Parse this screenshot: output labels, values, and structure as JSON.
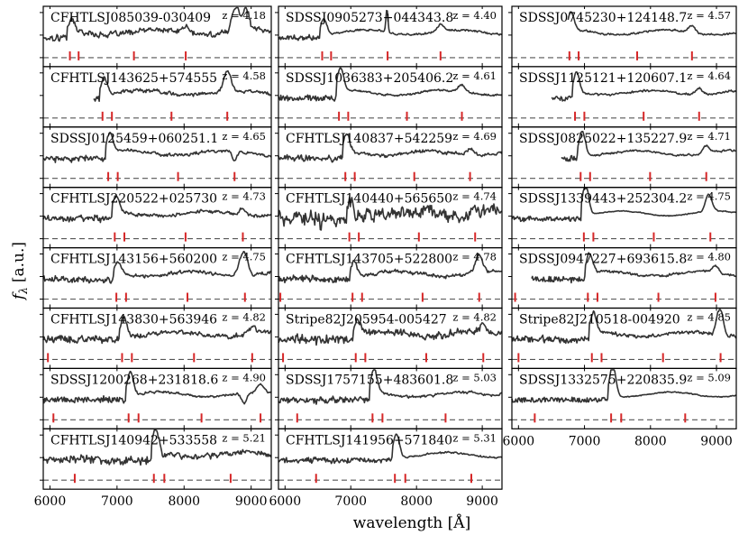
{
  "figure": {
    "ylabel": "f_λ [a.u.]",
    "ylabel_main": "f",
    "ylabel_sub": "λ",
    "ylabel_unit": "[a.u.]",
    "xlabel": "wavelength [Å]",
    "xticks": [
      "6000",
      "7000",
      "8000",
      "9000"
    ],
    "z_prefix": "z = ",
    "colors": {
      "spectrum": "#333333",
      "line_marker": "#d62728",
      "zero_line": "#555555",
      "axes": "#000000"
    }
  },
  "chart_data": {
    "type": "line",
    "title": "",
    "xlabel": "wavelength [Å]",
    "ylabel": "f_λ [a.u.]",
    "xlim": [
      5900,
      9300
    ],
    "xticks": [
      6000,
      7000,
      8000,
      9000
    ],
    "marker_rest_wavelengths_A": [
      1025.7,
      1215.7,
      1240.8,
      1400.0,
      1549.1,
      1908.7
    ],
    "panels": [
      {
        "name": "CFHTLSJ085039-030409",
        "z": "4.18",
        "zval": 4.18,
        "col": 0,
        "row": 0,
        "start": 5900,
        "lyamp": 0.55,
        "noise": 0.22,
        "peaks": [
          [
            8780,
            1.3,
            60
          ],
          [
            8930,
            1.1,
            40
          ]
        ]
      },
      {
        "name": "CFHTLSJ143625+574555",
        "z": "4.58",
        "zval": 4.58,
        "col": 0,
        "row": 1,
        "start": 6650,
        "lyamp": 0.9,
        "noise": 0.15,
        "peaks": [
          [
            8650,
            0.7,
            50
          ]
        ]
      },
      {
        "name": "SDSSJ0125459+060251.1",
        "z": "4.65",
        "zval": 4.65,
        "col": 0,
        "row": 2,
        "start": 5900,
        "lyamp": 1.0,
        "noise": 0.12,
        "peaks": [],
        "dips": [
          [
            8750,
            0.8,
            40
          ]
        ]
      },
      {
        "name": "CFHTLSJ220522+025730",
        "z": "4.73",
        "zval": 4.73,
        "col": 0,
        "row": 3,
        "start": 5900,
        "lyamp": 0.8,
        "noise": 0.14,
        "peaks": []
      },
      {
        "name": "CFHTLSJ143156+560200",
        "z": "4.75",
        "zval": 4.75,
        "col": 0,
        "row": 4,
        "start": 5900,
        "lyamp": 0.6,
        "noise": 0.14,
        "peaks": [
          [
            8880,
            0.9,
            60
          ]
        ]
      },
      {
        "name": "CFHTLSJ143830+563946",
        "z": "4.82",
        "zval": 4.82,
        "col": 0,
        "row": 5,
        "start": 5900,
        "lyamp": 1.0,
        "noise": 0.2,
        "peaks": []
      },
      {
        "name": "SDSSJ1200268+231818.6",
        "z": "4.90",
        "zval": 4.9,
        "col": 0,
        "row": 6,
        "start": 5900,
        "lyamp": 1.2,
        "noise": 0.1,
        "peaks": [],
        "dips": [
          [
            8900,
            0.5,
            40
          ]
        ]
      },
      {
        "name": "CFHTLSJ140942+533558",
        "z": "5.21",
        "zval": 5.21,
        "col": 0,
        "row": 7,
        "start": 5900,
        "lyamp": 1.3,
        "noise": 0.25,
        "peaks": []
      },
      {
        "name": "SDSSJ0905273+044343.8",
        "z": "4.40",
        "zval": 4.4,
        "col": 1,
        "row": 0,
        "start": 5900,
        "lyamp": 0.8,
        "noise": 0.08,
        "peaks": [
          [
            7550,
            1.2,
            15
          ]
        ]
      },
      {
        "name": "SDSSJ1036383+205406.2",
        "z": "4.61",
        "zval": 4.61,
        "col": 1,
        "row": 1,
        "start": 5900,
        "lyamp": 1.2,
        "noise": 0.08,
        "peaks": []
      },
      {
        "name": "CFHTLSJ140837+542259",
        "z": "4.69",
        "zval": 4.69,
        "col": 1,
        "row": 2,
        "start": 5900,
        "lyamp": 0.9,
        "noise": 0.14,
        "peaks": []
      },
      {
        "name": "CFHTLSJ140440+565650",
        "z": "4.74",
        "zval": 4.74,
        "col": 1,
        "row": 3,
        "start": 5900,
        "lyamp": 0.6,
        "noise": 0.55,
        "peaks": []
      },
      {
        "name": "CFHTLSJ143705+522800",
        "z": "4.78",
        "zval": 4.78,
        "col": 1,
        "row": 4,
        "start": 5900,
        "lyamp": 0.7,
        "noise": 0.15,
        "peaks": [
          [
            8950,
            0.6,
            50
          ]
        ]
      },
      {
        "name": "Stripe82J205954-005427",
        "z": "4.82",
        "zval": 4.82,
        "col": 1,
        "row": 5,
        "start": 5900,
        "lyamp": 0.8,
        "noise": 0.3,
        "peaks": []
      },
      {
        "name": "SDSSJ1757155+483601.8",
        "z": "5.03",
        "zval": 5.03,
        "col": 1,
        "row": 6,
        "start": 5900,
        "lyamp": 1.2,
        "noise": 0.1,
        "peaks": []
      },
      {
        "name": "CFHTLSJ141956+571840",
        "z": "5.31",
        "zval": 5.31,
        "col": 1,
        "row": 7,
        "start": 5900,
        "lyamp": 1.2,
        "noise": 0.08,
        "peaks": []
      },
      {
        "name": "SDSSJ0745230+124148.7",
        "z": "4.57",
        "zval": 4.57,
        "col": 2,
        "row": 0,
        "start": 6750,
        "lyamp": 0.9,
        "noise": 0.08,
        "peaks": []
      },
      {
        "name": "SDSSJ1125121+120607.1",
        "z": "4.64",
        "zval": 4.64,
        "col": 2,
        "row": 1,
        "start": 6500,
        "lyamp": 1.0,
        "noise": 0.1,
        "peaks": []
      },
      {
        "name": "SDSSJ0825022+135227.9",
        "z": "4.71",
        "zval": 4.71,
        "col": 2,
        "row": 2,
        "start": 6650,
        "lyamp": 1.2,
        "noise": 0.08,
        "peaks": []
      },
      {
        "name": "SDSSJ1339443+252304.2",
        "z": "4.75",
        "zval": 4.75,
        "col": 2,
        "row": 3,
        "start": 5900,
        "lyamp": 1.6,
        "noise": 0.04,
        "peaks": [
          [
            8870,
            0.6,
            40
          ]
        ]
      },
      {
        "name": "SDSSJ0947227+693615.8",
        "z": "4.80",
        "zval": 4.8,
        "col": 2,
        "row": 4,
        "start": 6200,
        "lyamp": 1.0,
        "noise": 0.1,
        "peaks": []
      },
      {
        "name": "Stripe82J210518-004920",
        "z": "4.85",
        "zval": 4.85,
        "col": 2,
        "row": 5,
        "start": 5900,
        "lyamp": 1.0,
        "noise": 0.15,
        "peaks": [
          [
            9050,
            1.0,
            50
          ]
        ]
      },
      {
        "name": "SDSSJ1332575+220835.9",
        "z": "5.09",
        "zval": 5.09,
        "col": 2,
        "row": 6,
        "start": 5900,
        "lyamp": 1.6,
        "noise": 0.04,
        "peaks": []
      }
    ]
  }
}
